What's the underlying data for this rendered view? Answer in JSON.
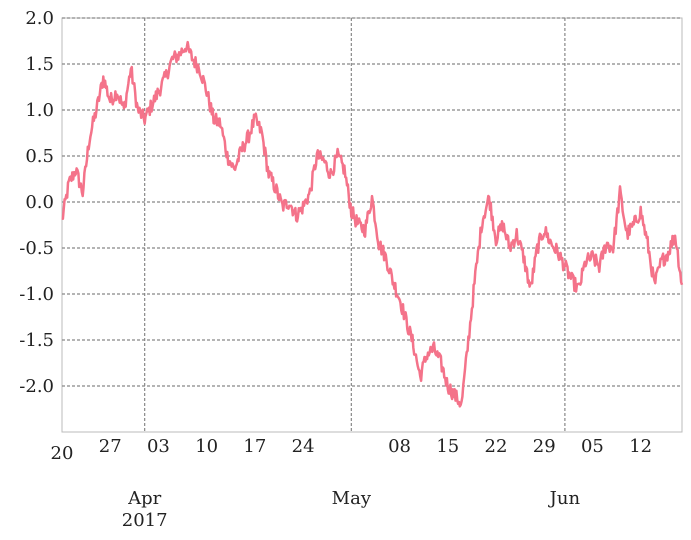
{
  "chart_data": {
    "type": "line",
    "x_start": "2017-03-20",
    "x_end": "2017-06-18",
    "xlim": [
      "2017-03-20",
      "2017-06-18"
    ],
    "ylim": [
      -2.5,
      2.0
    ],
    "y_ticks": [
      -2.0,
      -1.5,
      -1.0,
      -0.5,
      0.0,
      0.5,
      1.0,
      1.5,
      2.0
    ],
    "y_tick_labels": [
      "-2.0",
      "-1.5",
      "-1.0",
      "-0.5",
      "0.0",
      "0.5",
      "1.0",
      "1.5",
      "2.0"
    ],
    "x_minor_ticks": [
      {
        "date": "2017-03-20",
        "label": "20"
      },
      {
        "date": "2017-03-27",
        "label": "27"
      },
      {
        "date": "2017-04-03",
        "label": "03"
      },
      {
        "date": "2017-04-10",
        "label": "10"
      },
      {
        "date": "2017-04-17",
        "label": "17"
      },
      {
        "date": "2017-04-24",
        "label": "24"
      },
      {
        "date": "2017-05-08",
        "label": "08"
      },
      {
        "date": "2017-05-15",
        "label": "15"
      },
      {
        "date": "2017-05-22",
        "label": "22"
      },
      {
        "date": "2017-05-29",
        "label": "29"
      },
      {
        "date": "2017-06-05",
        "label": "05"
      },
      {
        "date": "2017-06-12",
        "label": "12"
      }
    ],
    "x_major_ticks": [
      {
        "date": "2017-04-01",
        "label": "Apr",
        "sublabel": "2017"
      },
      {
        "date": "2017-05-01",
        "label": "May",
        "sublabel": ""
      },
      {
        "date": "2017-06-01",
        "label": "Jun",
        "sublabel": ""
      }
    ],
    "grid": true,
    "series": [
      {
        "color": "#f4738a",
        "x": [
          "2017-03-20",
          "2017-03-21",
          "2017-03-22",
          "2017-03-23",
          "2017-03-24",
          "2017-03-25",
          "2017-03-26",
          "2017-03-27",
          "2017-03-28",
          "2017-03-29",
          "2017-03-30",
          "2017-03-31",
          "2017-04-01",
          "2017-04-02",
          "2017-04-03",
          "2017-04-04",
          "2017-04-05",
          "2017-04-06",
          "2017-04-07",
          "2017-04-08",
          "2017-04-09",
          "2017-04-10",
          "2017-04-11",
          "2017-04-12",
          "2017-04-13",
          "2017-04-14",
          "2017-04-15",
          "2017-04-16",
          "2017-04-17",
          "2017-04-18",
          "2017-04-19",
          "2017-04-20",
          "2017-04-21",
          "2017-04-22",
          "2017-04-23",
          "2017-04-24",
          "2017-04-25",
          "2017-04-26",
          "2017-04-27",
          "2017-04-28",
          "2017-04-29",
          "2017-04-30",
          "2017-05-01",
          "2017-05-02",
          "2017-05-03",
          "2017-05-04",
          "2017-05-05",
          "2017-05-06",
          "2017-05-07",
          "2017-05-08",
          "2017-05-09",
          "2017-05-10",
          "2017-05-11",
          "2017-05-12",
          "2017-05-13",
          "2017-05-14",
          "2017-05-15",
          "2017-05-16",
          "2017-05-17",
          "2017-05-18",
          "2017-05-19",
          "2017-05-20",
          "2017-05-21",
          "2017-05-22",
          "2017-05-23",
          "2017-05-24",
          "2017-05-25",
          "2017-05-26",
          "2017-05-27",
          "2017-05-28",
          "2017-05-29",
          "2017-05-30",
          "2017-05-31",
          "2017-06-01",
          "2017-06-02",
          "2017-06-03",
          "2017-06-04",
          "2017-06-05",
          "2017-06-06",
          "2017-06-07",
          "2017-06-08",
          "2017-06-09",
          "2017-06-10",
          "2017-06-11",
          "2017-06-12",
          "2017-06-13",
          "2017-06-14",
          "2017-06-15",
          "2017-06-16",
          "2017-06-17",
          "2017-06-18"
        ],
        "y": [
          -0.2,
          0.2,
          0.35,
          0.1,
          0.7,
          1.0,
          1.35,
          1.1,
          1.2,
          1.0,
          1.45,
          1.0,
          0.9,
          1.05,
          1.2,
          1.35,
          1.55,
          1.6,
          1.7,
          1.55,
          1.45,
          1.2,
          0.9,
          0.85,
          0.5,
          0.35,
          0.55,
          0.7,
          0.9,
          0.75,
          0.3,
          0.15,
          -0.05,
          0.0,
          -0.15,
          -0.05,
          0.1,
          0.5,
          0.45,
          0.3,
          0.5,
          0.35,
          -0.1,
          -0.25,
          -0.3,
          0.05,
          -0.45,
          -0.6,
          -0.85,
          -1.05,
          -1.3,
          -1.55,
          -1.9,
          -1.65,
          -1.6,
          -1.75,
          -2.0,
          -2.1,
          -2.2,
          -1.5,
          -0.8,
          -0.2,
          0.05,
          -0.4,
          -0.25,
          -0.5,
          -0.35,
          -0.6,
          -0.95,
          -0.5,
          -0.3,
          -0.45,
          -0.55,
          -0.7,
          -0.85,
          -0.95,
          -0.65,
          -0.6,
          -0.7,
          -0.45,
          -0.5,
          0.1,
          -0.35,
          -0.25,
          -0.1,
          -0.45,
          -0.9,
          -0.65,
          -0.55,
          -0.35,
          -0.9
        ]
      }
    ]
  }
}
